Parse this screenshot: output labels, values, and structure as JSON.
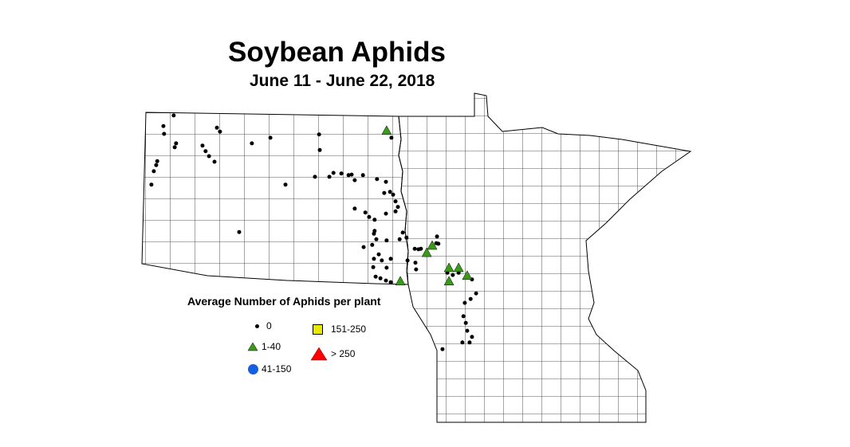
{
  "title": "Soybean Aphids",
  "subtitle": "June 11 - June 22, 2018",
  "legend": {
    "title": "Average Number of Aphids per plant",
    "items": [
      {
        "label": "0",
        "symbol": "dot",
        "color": "#000000"
      },
      {
        "label": "1-40",
        "symbol": "triangle",
        "color": "#3a9a1a"
      },
      {
        "label": "41-150",
        "symbol": "circle",
        "color": "#1560e0"
      },
      {
        "label": "151-250",
        "symbol": "square",
        "color": "#e8e800"
      },
      {
        "label": "> 250",
        "symbol": "triangle",
        "color": "#ff0000"
      }
    ]
  },
  "regions": [
    "North Dakota",
    "Minnesota"
  ],
  "sites": {
    "zero": [
      [
        -103.24,
        48.93
      ],
      [
        -103.54,
        48.74
      ],
      [
        -103.52,
        48.6
      ],
      [
        -103.17,
        48.43
      ],
      [
        -103.21,
        48.36
      ],
      [
        -101.98,
        48.71
      ],
      [
        -101.89,
        48.64
      ],
      [
        -102.4,
        48.39
      ],
      [
        -102.31,
        48.29
      ],
      [
        -102.21,
        48.2
      ],
      [
        -102.05,
        48.1
      ],
      [
        -103.72,
        48.11
      ],
      [
        -103.75,
        48.04
      ],
      [
        -103.82,
        47.93
      ],
      [
        -103.89,
        47.69
      ],
      [
        -100.96,
        48.43
      ],
      [
        -100.42,
        48.53
      ],
      [
        -99.0,
        48.59
      ],
      [
        -98.98,
        48.31
      ],
      [
        -99.98,
        47.69
      ],
      [
        -101.33,
        46.84
      ],
      [
        -99.12,
        47.83
      ],
      [
        -98.7,
        47.83
      ],
      [
        -98.58,
        47.9
      ],
      [
        -98.35,
        47.89
      ],
      [
        -98.14,
        47.86
      ],
      [
        -98.05,
        47.87
      ],
      [
        -97.72,
        47.86
      ],
      [
        -97.96,
        47.77
      ],
      [
        -97.31,
        47.79
      ],
      [
        -97.05,
        47.74
      ],
      [
        -96.93,
        47.56
      ],
      [
        -96.84,
        47.51
      ],
      [
        -97.1,
        47.54
      ],
      [
        -96.77,
        47.39
      ],
      [
        -96.7,
        47.29
      ],
      [
        -97.96,
        47.26
      ],
      [
        -97.65,
        47.19
      ],
      [
        -97.54,
        47.11
      ],
      [
        -97.38,
        47.06
      ],
      [
        -97.05,
        47.17
      ],
      [
        -96.77,
        47.21
      ],
      [
        -97.38,
        46.86
      ],
      [
        -97.4,
        46.81
      ],
      [
        -97.33,
        46.71
      ],
      [
        -97.45,
        46.61
      ],
      [
        -97.03,
        46.69
      ],
      [
        -96.65,
        46.71
      ],
      [
        -96.56,
        46.83
      ],
      [
        -96.45,
        46.74
      ],
      [
        -97.7,
        46.57
      ],
      [
        -97.26,
        46.44
      ],
      [
        -97.4,
        46.36
      ],
      [
        -97.17,
        46.33
      ],
      [
        -96.91,
        46.36
      ],
      [
        -97.03,
        46.2
      ],
      [
        -97.42,
        46.21
      ],
      [
        -97.21,
        46.01
      ],
      [
        -97.35,
        46.04
      ],
      [
        -97.05,
        45.97
      ],
      [
        -96.42,
        46.33
      ],
      [
        -96.21,
        46.54
      ],
      [
        -96.1,
        46.53
      ],
      [
        -96.19,
        46.29
      ],
      [
        -96.17,
        46.17
      ],
      [
        -95.56,
        46.76
      ],
      [
        -95.58,
        46.64
      ],
      [
        -95.52,
        46.63
      ],
      [
        -95.26,
        46.11
      ],
      [
        -95.1,
        46.07
      ],
      [
        -94.93,
        46.11
      ],
      [
        -94.54,
        45.99
      ],
      [
        -94.42,
        45.74
      ],
      [
        -94.58,
        45.64
      ],
      [
        -94.75,
        45.57
      ],
      [
        -94.79,
        45.33
      ],
      [
        -94.72,
        45.21
      ],
      [
        -94.68,
        45.07
      ],
      [
        -94.54,
        44.96
      ],
      [
        -94.61,
        44.86
      ],
      [
        -94.82,
        44.86
      ],
      [
        -95.4,
        44.74
      ],
      [
        -96.89,
        48.53
      ],
      [
        -96.91,
        45.94
      ],
      [
        -96.03,
        46.54
      ]
    ],
    "range_1_40": [
      [
        -97.03,
        48.66
      ],
      [
        -95.7,
        46.6
      ],
      [
        -95.86,
        46.47
      ],
      [
        -95.21,
        46.2
      ],
      [
        -94.93,
        46.2
      ],
      [
        -94.68,
        46.06
      ],
      [
        -95.21,
        45.96
      ],
      [
        -96.63,
        45.96
      ]
    ]
  }
}
